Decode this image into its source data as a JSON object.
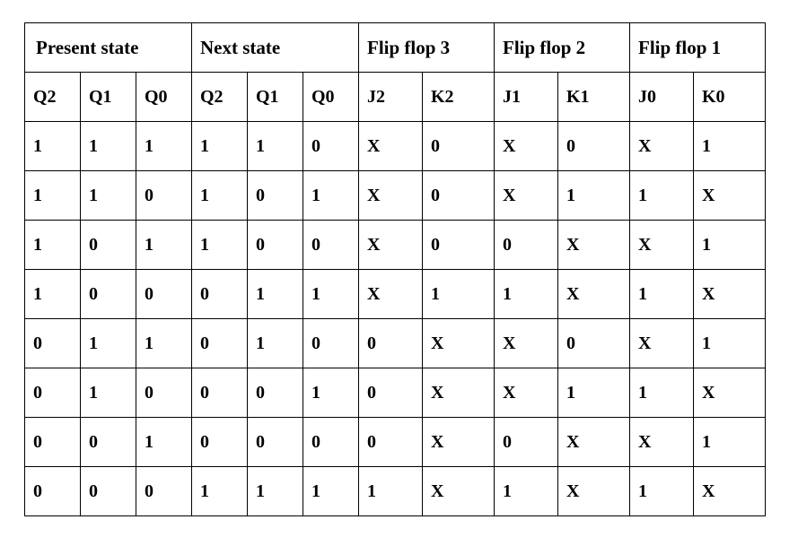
{
  "table": {
    "groups": [
      {
        "label": "Present state",
        "span": 3
      },
      {
        "label": "Next state",
        "span": 3
      },
      {
        "label": "Flip flop 3",
        "span": 2
      },
      {
        "label": "Flip flop 2",
        "span": 2
      },
      {
        "label": "Flip flop 1",
        "span": 2
      }
    ],
    "columns": [
      "Q2",
      "Q1",
      "Q0",
      "Q2",
      "Q1",
      "Q0",
      "J2",
      "K2",
      "J1",
      "K1",
      "J0",
      "K0"
    ],
    "rows": [
      [
        "1",
        "1",
        "1",
        "1",
        "1",
        "0",
        "X",
        "0",
        "X",
        "0",
        "X",
        "1"
      ],
      [
        "1",
        "1",
        "0",
        "1",
        "0",
        "1",
        "X",
        "0",
        "X",
        "1",
        "1",
        "X"
      ],
      [
        "1",
        "0",
        "1",
        "1",
        "0",
        "0",
        "X",
        "0",
        "0",
        "X",
        "X",
        "1"
      ],
      [
        "1",
        "0",
        "0",
        "0",
        "1",
        "1",
        "X",
        "1",
        "1",
        "X",
        "1",
        "X"
      ],
      [
        "0",
        "1",
        "1",
        "0",
        "1",
        "0",
        "0",
        "X",
        "X",
        "0",
        "X",
        "1"
      ],
      [
        "0",
        "1",
        "0",
        "0",
        "0",
        "1",
        "0",
        "X",
        "X",
        "1",
        "1",
        "X"
      ],
      [
        "0",
        "0",
        "1",
        "0",
        "0",
        "0",
        "0",
        "X",
        "0",
        "X",
        "X",
        "1"
      ],
      [
        "0",
        "0",
        "0",
        "1",
        "1",
        "1",
        "1",
        "X",
        "1",
        "X",
        "1",
        "X"
      ]
    ]
  }
}
